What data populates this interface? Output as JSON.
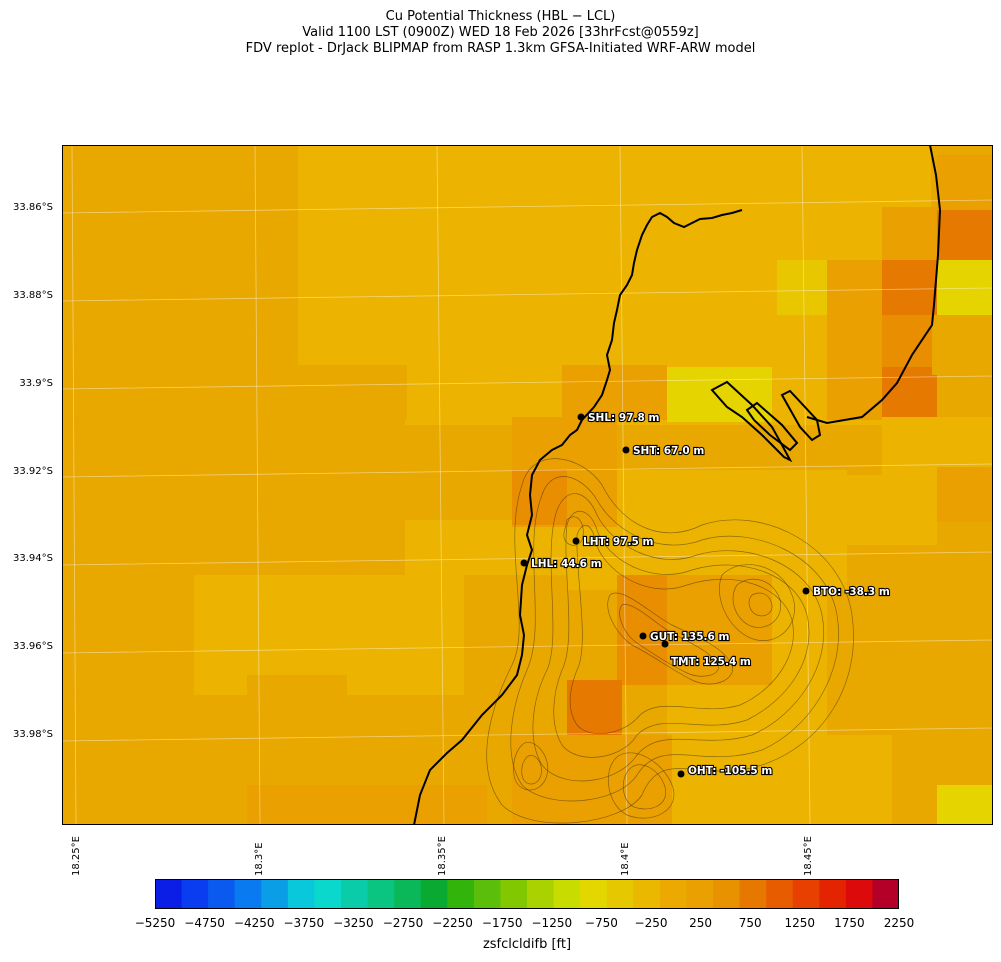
{
  "title": {
    "line1": "Cu Potential Thickness (HBL − LCL)",
    "line2": "Valid 1100 LST (0900Z) WED 18 Feb 2026 [33hrFcst@0559z]",
    "line3": "FDV replot - DrJack BLIPMAP from RASP 1.3km GFSA-Initiated WRF-ARW model"
  },
  "lat_labels": [
    "33.86°S",
    "33.88°S",
    "33.9°S",
    "33.92°S",
    "33.94°S",
    "33.96°S",
    "33.98°S"
  ],
  "lon_labels": [
    "18.25°E",
    "18.3°E",
    "18.35°E",
    "18.4°E",
    "18.45°E"
  ],
  "stations": [
    {
      "label": "SHL: 97.8 m"
    },
    {
      "label": "SHT: 67.0 m"
    },
    {
      "label": "LHT: 97.5 m"
    },
    {
      "label": "LHL: 44.6 m"
    },
    {
      "label": "BTO: -38.3 m"
    },
    {
      "label": "GUT: 135.6 m"
    },
    {
      "label": "TMT: 125.4 m"
    },
    {
      "label": "OHT: -105.5 m"
    }
  ],
  "colorbar": {
    "label": "zsfclcldifb [ft]",
    "ticks": [
      "−5250",
      "−4750",
      "−4250",
      "−3750",
      "−3250",
      "−2750",
      "−2250",
      "−1750",
      "−1250",
      "−750",
      "−250",
      "250",
      "750",
      "1250",
      "1750",
      "2250"
    ],
    "colors": [
      "#0a1ee6",
      "#0a3cf0",
      "#0a5af0",
      "#0a7af0",
      "#0a9ee6",
      "#0ac8dc",
      "#0ad8cc",
      "#0acca8",
      "#0ac482",
      "#0ab85a",
      "#0aaa32",
      "#32b40a",
      "#5abe0a",
      "#82c800",
      "#aad200",
      "#c8dc00",
      "#e2d800",
      "#e6c800",
      "#ebb800",
      "#ecaa00",
      "#e9a000",
      "#e89200",
      "#e67800",
      "#e85c00",
      "#e84000",
      "#e42400",
      "#dc0a0a",
      "#b40028"
    ]
  },
  "chart_data": {
    "type": "heatmap",
    "title": "Cu Potential Thickness (HBL − LCL)",
    "variable": "zsfclcldifb",
    "units": "ft",
    "colorbar_range": [
      -5250,
      2250
    ],
    "colorbar_step": 250,
    "lon_ticks": [
      18.25,
      18.3,
      18.35,
      18.4,
      18.45
    ],
    "lat_ticks": [
      -33.86,
      -33.88,
      -33.9,
      -33.92,
      -33.94,
      -33.96,
      -33.98
    ],
    "stations": [
      {
        "id": "SHL",
        "value_m": 97.8
      },
      {
        "id": "SHT",
        "value_m": 67.0
      },
      {
        "id": "LHT",
        "value_m": 97.5
      },
      {
        "id": "LHL",
        "value_m": 44.6
      },
      {
        "id": "BTO",
        "value_m": -38.3
      },
      {
        "id": "GUT",
        "value_m": 135.6
      },
      {
        "id": "TMT",
        "value_m": 125.4
      },
      {
        "id": "OHT",
        "value_m": -105.5
      }
    ]
  }
}
